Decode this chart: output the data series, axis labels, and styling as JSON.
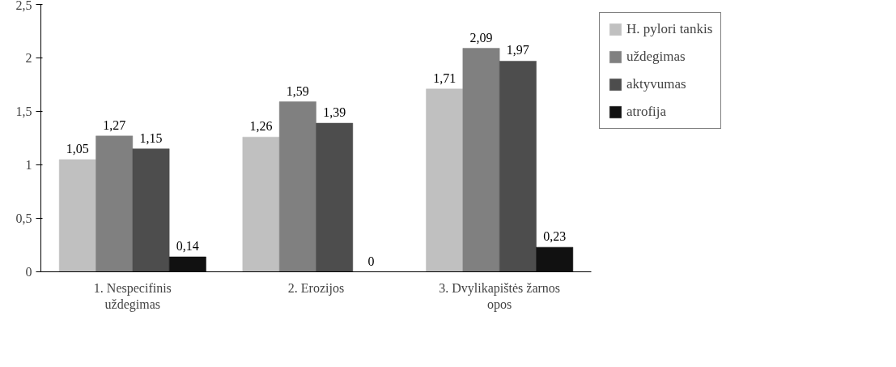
{
  "chart_data": {
    "type": "bar",
    "categories": [
      "1. Nespecifinis\nuždegimas",
      "2. Erozijos",
      "3. Dvylikapištės žarnos\nopos"
    ],
    "series": [
      {
        "name": "H. pylori tankis",
        "color": "#c0c0c0",
        "values": [
          1.05,
          1.26,
          1.71
        ],
        "value_labels": [
          "1,05",
          "1,26",
          "1,71"
        ]
      },
      {
        "name": "uždegimas",
        "color": "#808080",
        "values": [
          1.27,
          1.59,
          2.09
        ],
        "value_labels": [
          "1,27",
          "1,59",
          "2,09"
        ]
      },
      {
        "name": "aktyvumas",
        "color": "#4d4d4d",
        "values": [
          1.15,
          1.39,
          1.97
        ],
        "value_labels": [
          "1,15",
          "1,39",
          "1,97"
        ]
      },
      {
        "name": "atrofija",
        "color": "#111111",
        "values": [
          0.14,
          0,
          0.23
        ],
        "value_labels": [
          "0,14",
          "0",
          "0,23"
        ]
      }
    ],
    "ylim": [
      0,
      2.5
    ],
    "yticks": [
      0,
      {
        "value": 0.5,
        "label": "0,5"
      },
      1,
      {
        "value": 1.5,
        "label": "1,5"
      },
      2,
      {
        "value": 2.5,
        "label": "2,5"
      }
    ],
    "grid": false,
    "legend": "top right"
  }
}
